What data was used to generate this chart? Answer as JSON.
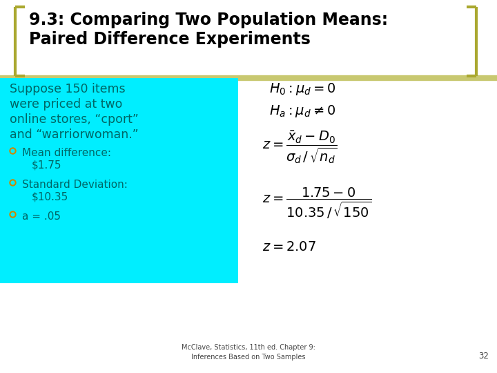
{
  "title_line1": "9.3: Comparing Two Population Means:",
  "title_line2": "Paired Difference Experiments",
  "background_color": "#ffffff",
  "title_color": "#000000",
  "cyan_box_color": "#00eeff",
  "body_text_color": "#006666",
  "bullet_color": "#cc8800",
  "footer_text": "McClave, Statistics, 11th ed. Chapter 9:\nInferences Based on Two Samples",
  "page_number": "32",
  "bracket_color": "#aaa830",
  "sep_line_color": "#c8c870",
  "title_fontsize": 17,
  "body_fontsize": 12.5,
  "bullet_fontsize": 11,
  "math_fontsize": 14,
  "footer_fontsize": 7
}
